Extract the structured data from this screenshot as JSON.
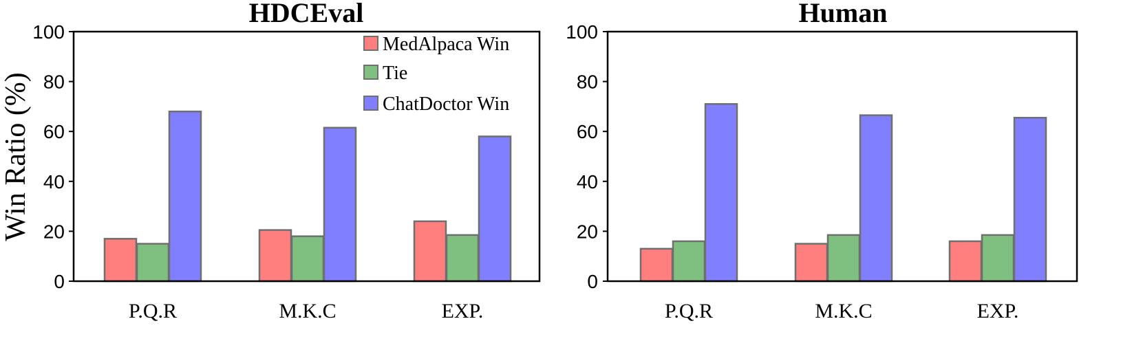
{
  "ylabel": "Win Ratio (%)",
  "legend": [
    {
      "label": "MedAlpaca Win",
      "color": "#ff7f7f"
    },
    {
      "label": "Tie",
      "color": "#7fbf7f"
    },
    {
      "label": "ChatDoctor Win",
      "color": "#7f7fff"
    }
  ],
  "chart_data": [
    {
      "type": "bar",
      "title": "HDCEval",
      "categories": [
        "P.Q.R",
        "M.K.C",
        "EXP."
      ],
      "series": [
        {
          "name": "MedAlpaca Win",
          "values": [
            17,
            20.5,
            24
          ]
        },
        {
          "name": "Tie",
          "values": [
            15,
            18,
            18.5
          ]
        },
        {
          "name": "ChatDoctor Win",
          "values": [
            68,
            61.5,
            58
          ]
        }
      ],
      "ylim": [
        0,
        100
      ],
      "yticks": [
        "0",
        "20",
        "40",
        "60",
        "80",
        "100"
      ],
      "legend_position": "top-right",
      "grid": false
    },
    {
      "type": "bar",
      "title": "Human",
      "categories": [
        "P.Q.R",
        "M.K.C",
        "EXP."
      ],
      "series": [
        {
          "name": "MedAlpaca Win",
          "values": [
            13,
            15,
            16
          ]
        },
        {
          "name": "Tie",
          "values": [
            16,
            18.5,
            18.5
          ]
        },
        {
          "name": "ChatDoctor Win",
          "values": [
            71,
            66.5,
            65.5
          ]
        }
      ],
      "ylim": [
        0,
        100
      ],
      "yticks": [
        "0",
        "20",
        "40",
        "60",
        "80",
        "100"
      ],
      "grid": false
    }
  ]
}
